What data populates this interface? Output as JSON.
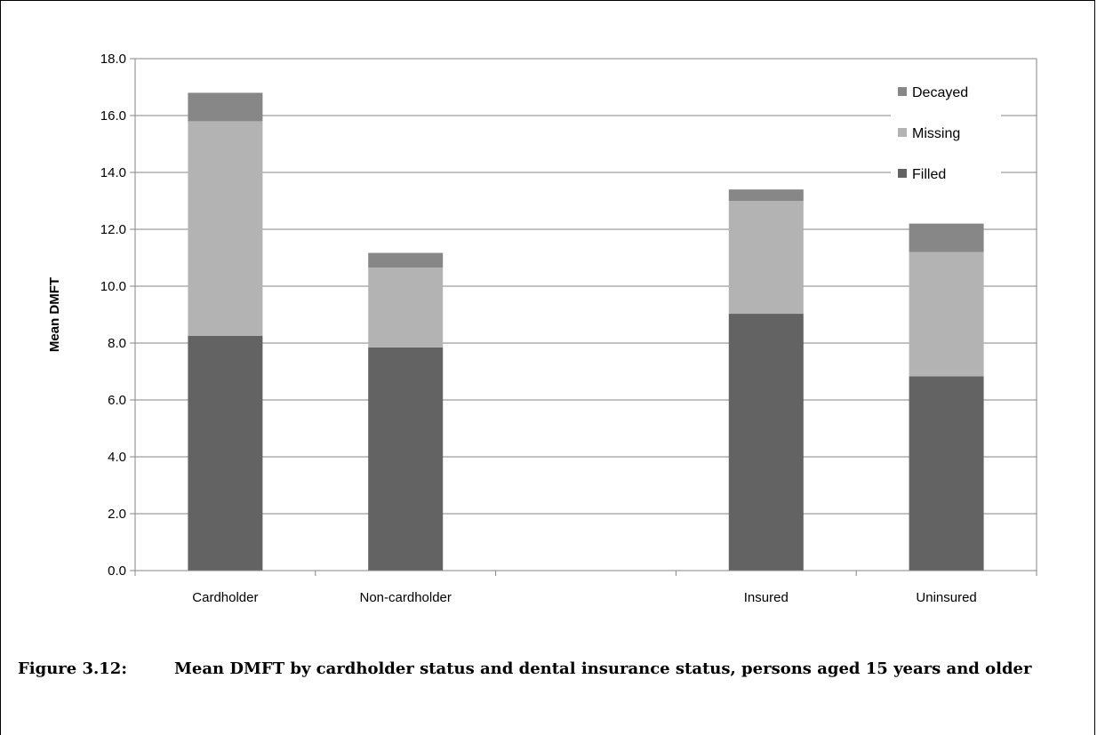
{
  "chart_data": {
    "type": "bar",
    "stacked": true,
    "categories": [
      "Cardholder",
      "Non-cardholder",
      "",
      "Insured",
      "Uninsured"
    ],
    "series": [
      {
        "name": "Filled",
        "color": "#636363",
        "values": [
          8.25,
          7.85,
          null,
          9.03,
          6.83
        ]
      },
      {
        "name": "Missing",
        "color": "#b3b3b3",
        "values": [
          7.55,
          2.8,
          null,
          3.97,
          4.37
        ]
      },
      {
        "name": "Decayed",
        "color": "#878787",
        "values": [
          1.0,
          0.52,
          null,
          0.4,
          1.0
        ]
      }
    ],
    "ylabel": "Mean DMFT",
    "ylim": [
      0,
      18
    ],
    "yticks": [
      "0.0",
      "2.0",
      "4.0",
      "6.0",
      "8.0",
      "10.0",
      "12.0",
      "14.0",
      "16.0",
      "18.0"
    ],
    "grid": true,
    "legend": "top-right"
  },
  "caption": {
    "label": "Figure 3.12:",
    "text": "Mean DMFT by cardholder status and dental insurance status, persons aged 15 years and older"
  }
}
